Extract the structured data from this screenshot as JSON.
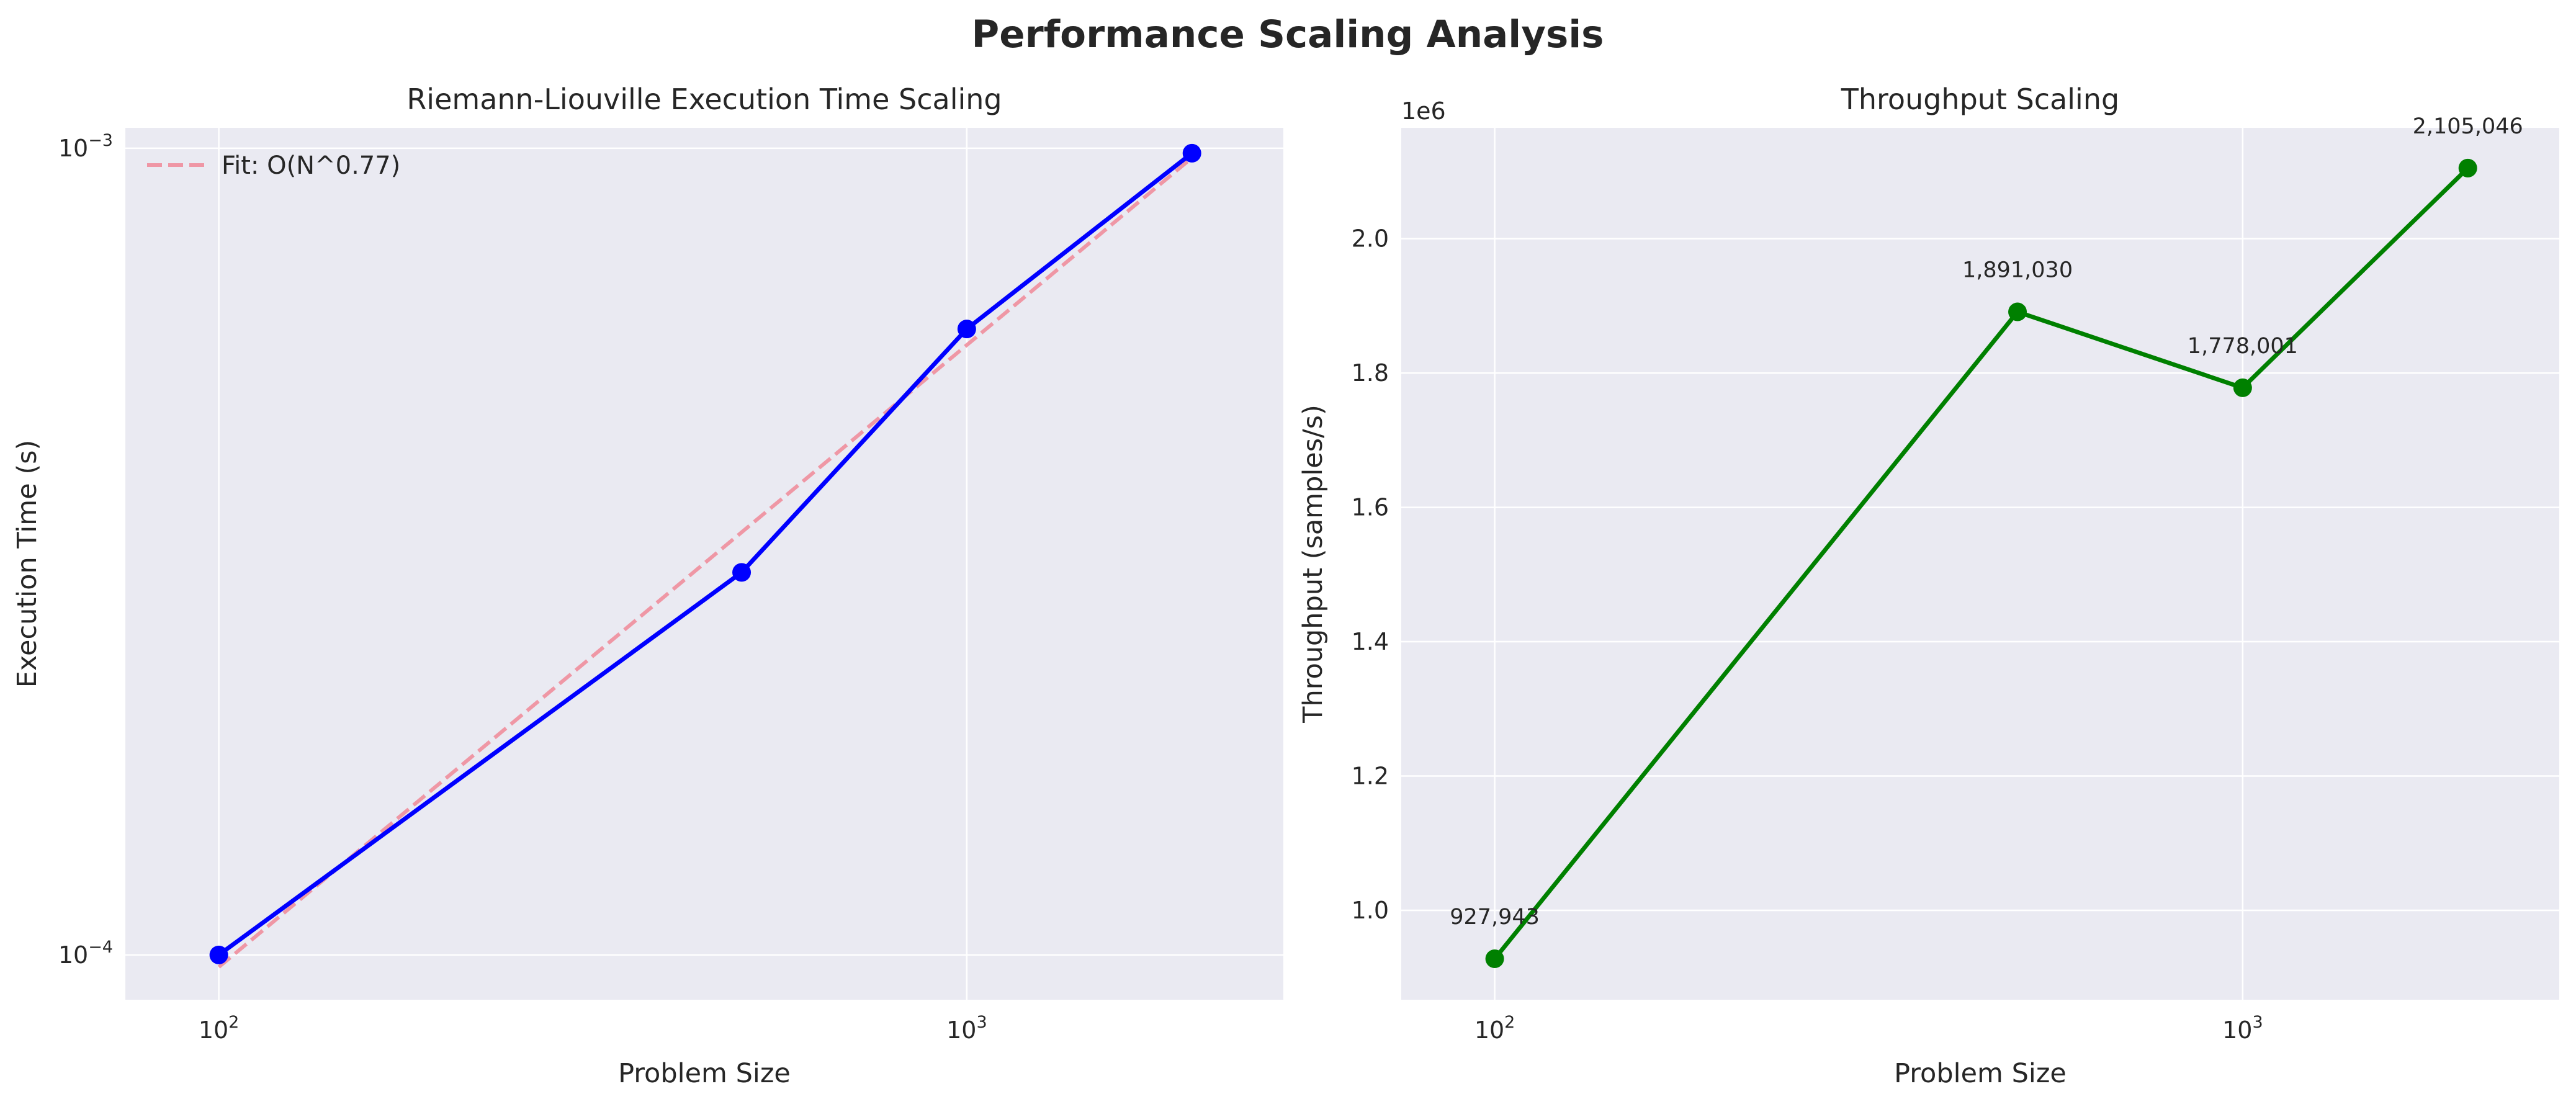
{
  "figure": {
    "title": "Performance Scaling Analysis"
  },
  "chart_data": [
    {
      "type": "line",
      "title": "Riemann-Liouville Execution Time Scaling",
      "xlabel": "Problem Size",
      "ylabel": "Execution Time (s)",
      "xscale": "log",
      "yscale": "log",
      "xlim": [
        75,
        2650
      ],
      "ylim": [
        8.8e-05,
        0.00106
      ],
      "xticks": [
        {
          "value": 100,
          "base": "10",
          "exp": "2"
        },
        {
          "value": 1000,
          "base": "10",
          "exp": "3"
        }
      ],
      "yticks": [
        {
          "value": 0.0001,
          "base": "10",
          "exp": "−4"
        },
        {
          "value": 0.001,
          "base": "10",
          "exp": "−3"
        }
      ],
      "grid": true,
      "legend": {
        "placement": "upper-left",
        "entries": [
          "Fit: O(N^0.77)"
        ]
      },
      "series": [
        {
          "x": [
            100,
            500,
            1000,
            2000
          ],
          "y": [
            0.0001,
            0.000298,
            0.000597,
            0.000986
          ],
          "color": "#0000ff",
          "style": "solid",
          "marker": "circle"
        },
        {
          "name": "Fit: O(N^0.77)",
          "x": [
            100,
            2000
          ],
          "y": [
            9.66e-05,
            0.000973
          ],
          "color": "#f08898",
          "style": "dashed",
          "marker": "none"
        }
      ]
    },
    {
      "type": "line",
      "title": "Throughput Scaling",
      "xlabel": "Problem Size",
      "ylabel": "Throughput (samples/s)",
      "xscale": "log",
      "yscale": "linear",
      "offset_label": "1e6",
      "xlim": [
        75,
        2650
      ],
      "ylim": [
        0.867,
        2.165
      ],
      "xticks": [
        {
          "value": 100,
          "base": "10",
          "exp": "2"
        },
        {
          "value": 1000,
          "base": "10",
          "exp": "3"
        }
      ],
      "yticks": [
        {
          "value": 1.0,
          "label": "1.0"
        },
        {
          "value": 1.2,
          "label": "1.2"
        },
        {
          "value": 1.4,
          "label": "1.4"
        },
        {
          "value": 1.6,
          "label": "1.6"
        },
        {
          "value": 1.8,
          "label": "1.8"
        },
        {
          "value": 2.0,
          "label": "2.0"
        }
      ],
      "grid": true,
      "series": [
        {
          "x": [
            100,
            500,
            1000,
            2000
          ],
          "y": [
            0.927943,
            1.89103,
            1.778001,
            2.105046
          ],
          "labels": [
            "927,943",
            "1,891,030",
            "1,778,001",
            "2,105,046"
          ],
          "color": "#008000",
          "style": "solid",
          "marker": "circle"
        }
      ]
    }
  ]
}
